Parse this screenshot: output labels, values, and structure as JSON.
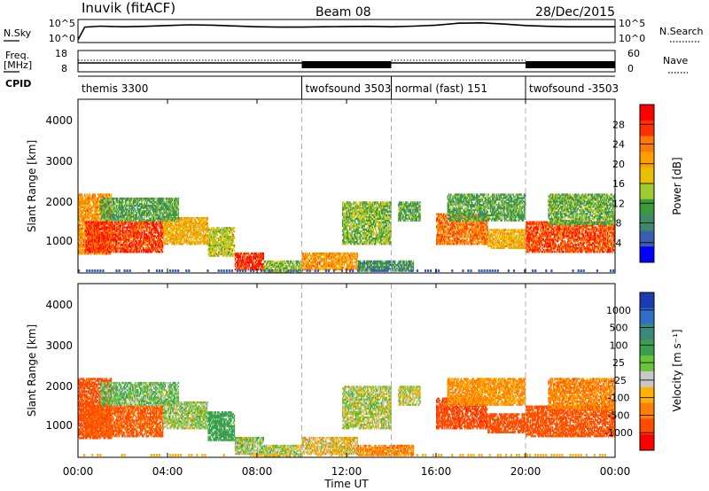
{
  "header": {
    "station": "Inuvik (fitACF)",
    "beam": "Beam 08",
    "date": "28/Dec/2015"
  },
  "panels": {
    "nsky": {
      "left_label": "N.Sky",
      "right_label": "N.Search",
      "y_ticks": [
        "10^5",
        "10^0"
      ],
      "right_ticks": [
        "10^5",
        "10^0"
      ]
    },
    "freq": {
      "left_label_1": "Freq.",
      "left_label_2": "[MHz]",
      "right_label": "Nave",
      "y_ticks": [
        "18",
        "8"
      ],
      "right_ticks": [
        "60",
        "0"
      ]
    },
    "cpid": {
      "label": "CPID",
      "segments": [
        {
          "name": "themis 3300",
          "start": 0,
          "end": 10
        },
        {
          "name": "twofsound 3503",
          "start": 10,
          "end": 14
        },
        {
          "name": "normal (fast) 151",
          "start": 14,
          "end": 20
        },
        {
          "name": "twofsound -3503",
          "start": 20,
          "end": 24
        }
      ]
    }
  },
  "time_axis": {
    "label": "Time UT",
    "ticks": [
      "00:00",
      "04:00",
      "08:00",
      "12:00",
      "16:00",
      "20:00",
      "00:00"
    ]
  },
  "power_panel": {
    "ylabel": "Slant Range [km]",
    "y_ticks": [
      "4000",
      "3000",
      "2000",
      "1000"
    ],
    "cbar_label": "Power [dB]",
    "cbar_ticks": [
      "28",
      "24",
      "20",
      "16",
      "12",
      "8",
      "4"
    ],
    "cbar_colors": [
      "#ff0000",
      "#ff3000",
      "#ff7a00",
      "#ffa000",
      "#e8c000",
      "#a0c830",
      "#3c9a3c",
      "#3c8a6a",
      "#3a5fae",
      "#0000ff"
    ]
  },
  "velocity_panel": {
    "ylabel": "Slant Range [km]",
    "y_ticks": [
      "4000",
      "3000",
      "2000",
      "1000"
    ],
    "cbar_label": "Velocity [m s⁻¹]",
    "cbar_ticks": [
      "1000",
      "500",
      "100",
      "25",
      "-25",
      "-100",
      "-500",
      "-1000"
    ],
    "cbar_colors": [
      "#1a3cb0",
      "#2f6fc8",
      "#3a8a7a",
      "#3aa050",
      "#6ac43a",
      "#c8c8c8",
      "#ffb000",
      "#ff8000",
      "#ff4a00",
      "#ff0000"
    ]
  },
  "chart_data": {
    "type": "heatmap",
    "x_unit": "hours UT",
    "xlim": [
      0,
      24
    ],
    "ylim_km": [
      180,
      4600
    ],
    "segment_boundaries_hours": [
      10,
      14,
      20
    ],
    "power_blobs": [
      {
        "t0": 0.0,
        "t1": 1.5,
        "r0": 650,
        "r1": 2200,
        "db": 22
      },
      {
        "t0": 0.3,
        "t1": 3.8,
        "r0": 700,
        "r1": 1500,
        "db": 27
      },
      {
        "t0": 3.8,
        "t1": 5.8,
        "r0": 900,
        "r1": 1600,
        "db": 20
      },
      {
        "t0": 1.0,
        "t1": 4.5,
        "r0": 1500,
        "r1": 2100,
        "db": 12
      },
      {
        "t0": 5.8,
        "t1": 7.0,
        "r0": 600,
        "r1": 1350,
        "db": 16
      },
      {
        "t0": 7.0,
        "t1": 8.3,
        "r0": 250,
        "r1": 700,
        "db": 28
      },
      {
        "t0": 8.3,
        "t1": 10.0,
        "r0": 200,
        "r1": 500,
        "db": 14
      },
      {
        "t0": 10.0,
        "t1": 12.5,
        "r0": 250,
        "r1": 700,
        "db": 22
      },
      {
        "t0": 12.5,
        "t1": 15.0,
        "r0": 220,
        "r1": 500,
        "db": 10
      },
      {
        "t0": 11.8,
        "t1": 14.0,
        "r0": 900,
        "r1": 2000,
        "db": 14
      },
      {
        "t0": 14.3,
        "t1": 15.3,
        "r0": 1500,
        "r1": 2000,
        "db": 12
      },
      {
        "t0": 16.0,
        "t1": 18.3,
        "r0": 900,
        "r1": 1700,
        "db": 24
      },
      {
        "t0": 16.5,
        "t1": 20.0,
        "r0": 1500,
        "r1": 2200,
        "db": 12
      },
      {
        "t0": 18.3,
        "t1": 20.0,
        "r0": 800,
        "r1": 1300,
        "db": 20
      },
      {
        "t0": 20.0,
        "t1": 24.0,
        "r0": 700,
        "r1": 1500,
        "db": 26
      },
      {
        "t0": 21.0,
        "t1": 24.0,
        "r0": 1400,
        "r1": 2200,
        "db": 13
      }
    ],
    "velocity_blobs": [
      {
        "t0": 0.0,
        "t1": 1.5,
        "r0": 650,
        "r1": 2200,
        "v": -150
      },
      {
        "t0": 0.3,
        "t1": 3.8,
        "r0": 700,
        "r1": 1500,
        "v": -120
      },
      {
        "t0": 3.8,
        "t1": 5.8,
        "r0": 900,
        "r1": 1600,
        "v": 60
      },
      {
        "t0": 1.0,
        "t1": 4.5,
        "r0": 1500,
        "r1": 2100,
        "v": 80
      },
      {
        "t0": 5.8,
        "t1": 7.0,
        "r0": 600,
        "r1": 1350,
        "v": 150
      },
      {
        "t0": 7.0,
        "t1": 8.3,
        "r0": 250,
        "r1": 700,
        "v": 60
      },
      {
        "t0": 8.3,
        "t1": 10.0,
        "r0": 200,
        "r1": 500,
        "v": 50
      },
      {
        "t0": 10.0,
        "t1": 12.5,
        "r0": 250,
        "r1": 700,
        "v": 10
      },
      {
        "t0": 12.5,
        "t1": 15.0,
        "r0": 220,
        "r1": 500,
        "v": -60
      },
      {
        "t0": 11.8,
        "t1": 14.0,
        "r0": 900,
        "r1": 2000,
        "v": 50
      },
      {
        "t0": 14.3,
        "t1": 15.3,
        "r0": 1500,
        "r1": 2000,
        "v": 40
      },
      {
        "t0": 16.0,
        "t1": 18.3,
        "r0": 900,
        "r1": 1700,
        "v": -200
      },
      {
        "t0": 16.5,
        "t1": 20.0,
        "r0": 1500,
        "r1": 2200,
        "v": -40
      },
      {
        "t0": 18.3,
        "t1": 20.0,
        "r0": 800,
        "r1": 1300,
        "v": -150
      },
      {
        "t0": 20.0,
        "t1": 24.0,
        "r0": 700,
        "r1": 1500,
        "v": -140
      },
      {
        "t0": 21.0,
        "t1": 24.0,
        "r0": 1400,
        "r1": 2200,
        "v": -60
      }
    ],
    "nsky_profile": [
      [
        0,
        0.05
      ],
      [
        0.3,
        0.7
      ],
      [
        1,
        0.75
      ],
      [
        2,
        0.72
      ],
      [
        3,
        0.74
      ],
      [
        4,
        0.78
      ],
      [
        5,
        0.82
      ],
      [
        6,
        0.8
      ],
      [
        7,
        0.76
      ],
      [
        8,
        0.72
      ],
      [
        9,
        0.7
      ],
      [
        10,
        0.7
      ],
      [
        11,
        0.72
      ],
      [
        12,
        0.73
      ],
      [
        13,
        0.74
      ],
      [
        14,
        0.72
      ],
      [
        15,
        0.75
      ],
      [
        16,
        0.8
      ],
      [
        17,
        0.9
      ],
      [
        18,
        0.92
      ],
      [
        19,
        0.86
      ],
      [
        20,
        0.78
      ],
      [
        21,
        0.74
      ],
      [
        22,
        0.72
      ],
      [
        23,
        0.72
      ],
      [
        24,
        0.72
      ]
    ],
    "freq_mhz": [
      {
        "t0": 0,
        "t1": 10,
        "f": 11
      },
      {
        "t0": 10,
        "t1": 14,
        "f": 11
      },
      {
        "t0": 14,
        "t1": 20,
        "f": 11
      },
      {
        "t0": 20,
        "t1": 24,
        "f": 11
      }
    ]
  }
}
